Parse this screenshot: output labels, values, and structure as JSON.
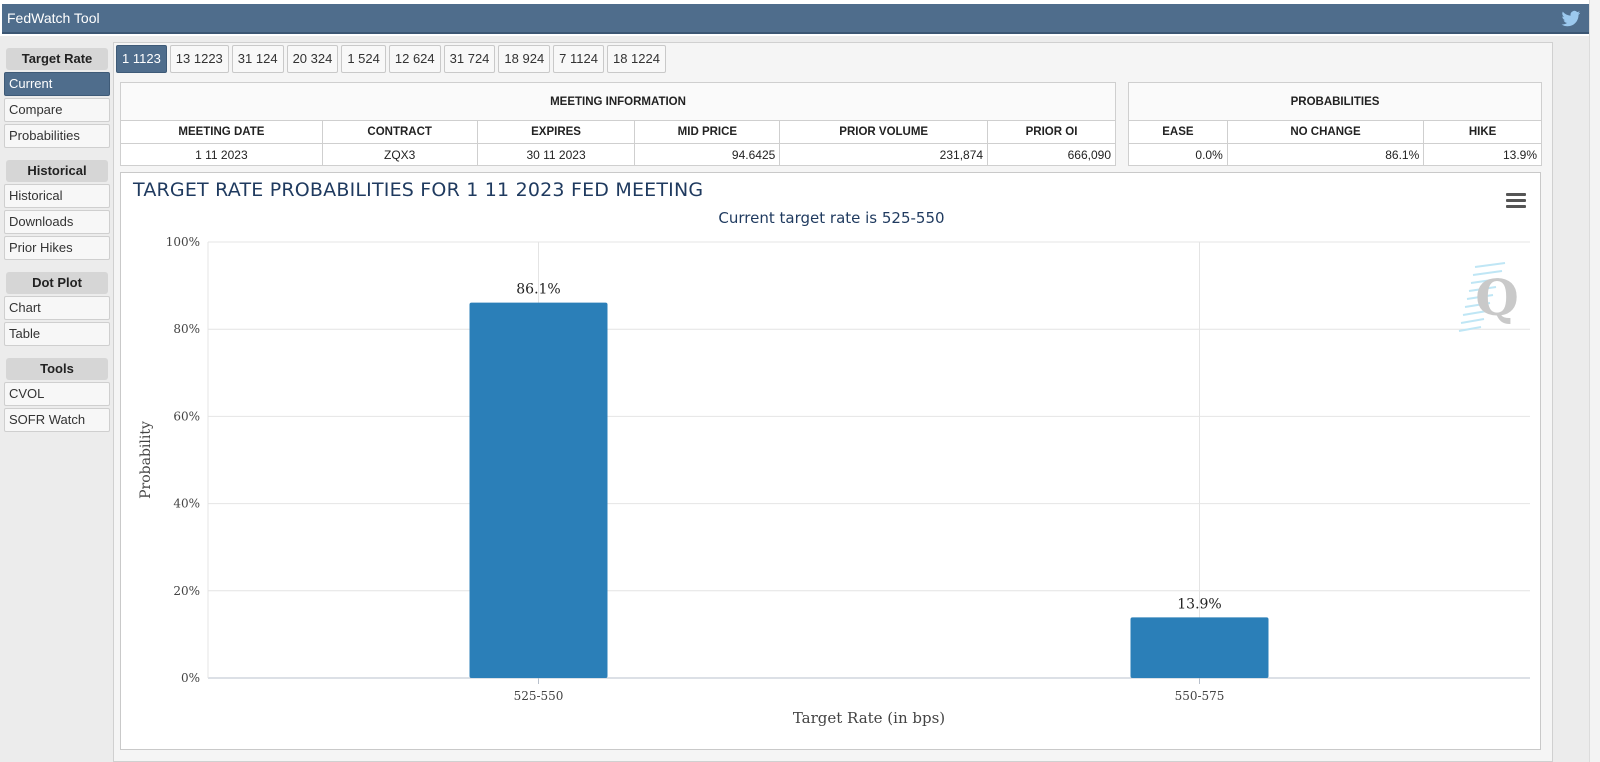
{
  "app": {
    "title": "FedWatch Tool",
    "twitter_icon": "twitter-bird-icon"
  },
  "sidebar": {
    "sections": [
      {
        "heading": "Target Rate",
        "items": [
          {
            "label": "Current",
            "active": true
          },
          {
            "label": "Compare",
            "active": false
          },
          {
            "label": "Probabilities",
            "active": false
          }
        ]
      },
      {
        "heading": "Historical",
        "items": [
          {
            "label": "Historical",
            "active": false
          },
          {
            "label": "Downloads",
            "active": false
          },
          {
            "label": "Prior Hikes",
            "active": false
          }
        ]
      },
      {
        "heading": "Dot Plot",
        "items": [
          {
            "label": "Chart",
            "active": false
          },
          {
            "label": "Table",
            "active": false
          }
        ]
      },
      {
        "heading": "Tools",
        "items": [
          {
            "label": "CVOL",
            "active": false
          },
          {
            "label": "SOFR Watch",
            "active": false
          }
        ]
      }
    ]
  },
  "tabs": [
    "1 1123",
    "13 1223",
    "31 124",
    "20 324",
    "1 524",
    "12 624",
    "31 724",
    "18 924",
    "7 1124",
    "18 1224"
  ],
  "active_tab": 0,
  "meeting_info": {
    "group_label": "MEETING INFORMATION",
    "headers": [
      "MEETING DATE",
      "CONTRACT",
      "EXPIRES",
      "MID PRICE",
      "PRIOR VOLUME",
      "PRIOR OI"
    ],
    "row": [
      "1 11 2023",
      "ZQX3",
      "30 11 2023",
      "94.6425",
      "231,874",
      "666,090"
    ]
  },
  "probabilities": {
    "group_label": "PROBABILITIES",
    "headers": [
      "EASE",
      "NO CHANGE",
      "HIKE"
    ],
    "row": [
      "0.0%",
      "86.1%",
      "13.9%"
    ]
  },
  "chart": {
    "menu_icon": "hamburger-menu-icon",
    "watermark": "Q"
  },
  "chart_data": {
    "type": "bar",
    "title": "TARGET RATE PROBABILITIES FOR 1 11 2023 FED MEETING",
    "subtitle": "Current target rate is 525-550",
    "categories": [
      "525-550",
      "550-575"
    ],
    "values": [
      86.1,
      13.9
    ],
    "data_labels": [
      "86.1%",
      "13.9%"
    ],
    "xlabel": "Target Rate (in bps)",
    "ylabel": "Probability",
    "ylim": [
      0,
      100
    ],
    "yticks": [
      0,
      20,
      40,
      60,
      80,
      100
    ],
    "ytick_labels": [
      "0%",
      "20%",
      "40%",
      "60%",
      "80%",
      "100%"
    ],
    "grid": true,
    "bar_color": "#2b7fb8"
  }
}
